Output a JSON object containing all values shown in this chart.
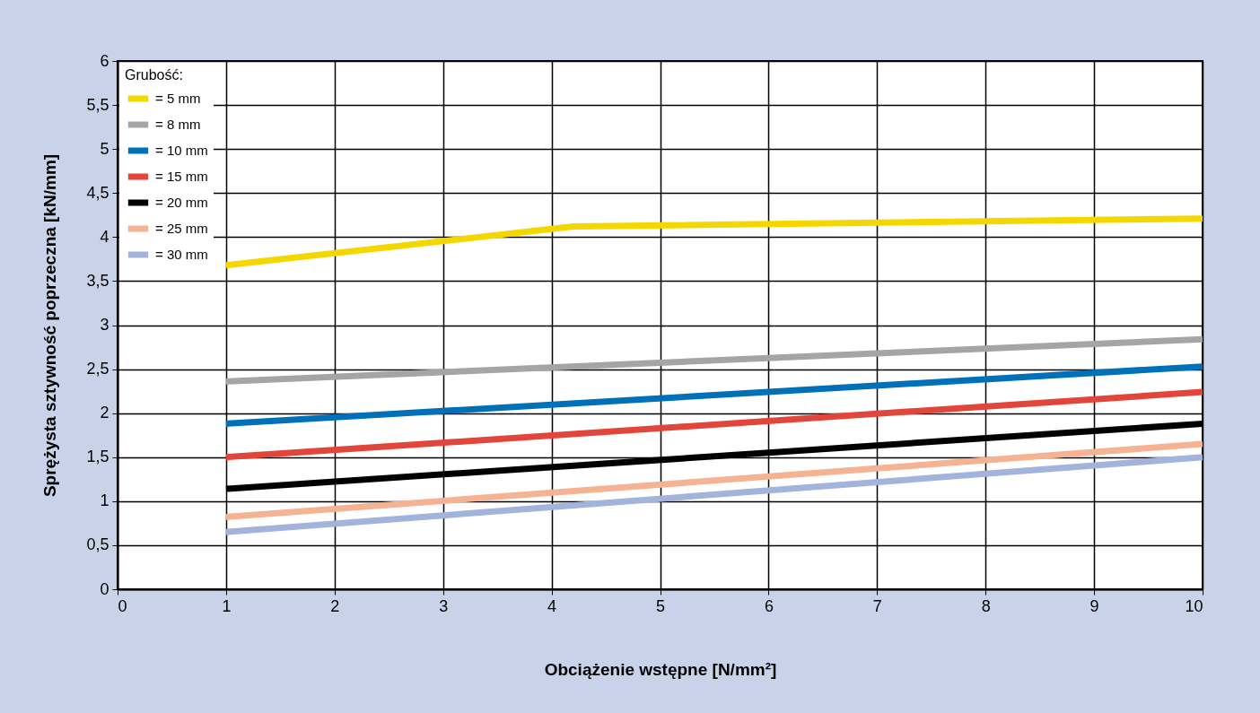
{
  "chart_data": {
    "type": "line",
    "xlabel": "Obciążenie wstępne [N/mm²]",
    "ylabel": "Sprężysta sztywność poprzeczna [kN/mm]",
    "legend_title": "Grubość:",
    "legend": "top left",
    "grid": true,
    "line_style": "solid",
    "xlim": [
      0,
      10
    ],
    "xticks": [
      0,
      1,
      2,
      3,
      4,
      5,
      6,
      7,
      8,
      9,
      10
    ],
    "ylim": [
      0,
      6
    ],
    "yticks": [
      0,
      {
        "value": 0.5,
        "label": "0,5"
      },
      1,
      {
        "value": 1.5,
        "label": "1,5"
      },
      2,
      {
        "value": 2.5,
        "label": "2,5"
      },
      3,
      {
        "value": 3.5,
        "label": "3,5"
      },
      4,
      {
        "value": 4.5,
        "label": "4,5"
      },
      5,
      {
        "value": 5.5,
        "label": "5,5"
      },
      6
    ],
    "series": [
      {
        "name": "= 5 mm",
        "color": "#f5d700",
        "x": [
          1,
          4.2,
          10
        ],
        "values": [
          3.68,
          4.12,
          4.21
        ]
      },
      {
        "name": "= 8 mm",
        "color": "#a5a5a5",
        "x": [
          1,
          10
        ],
        "values": [
          2.36,
          2.84
        ]
      },
      {
        "name": "= 10 mm",
        "color": "#0070b8",
        "x": [
          1,
          10
        ],
        "values": [
          1.88,
          2.53
        ]
      },
      {
        "name": "= 15 mm",
        "color": "#e2463a",
        "x": [
          1,
          10
        ],
        "values": [
          1.5,
          2.24
        ]
      },
      {
        "name": "= 20 mm",
        "color": "#000000",
        "x": [
          1,
          10
        ],
        "values": [
          1.14,
          1.88
        ]
      },
      {
        "name": "= 25 mm",
        "color": "#f5b394",
        "x": [
          1,
          10
        ],
        "values": [
          0.82,
          1.65
        ]
      },
      {
        "name": "= 30 mm",
        "color": "#a2b4dc",
        "x": [
          1,
          10
        ],
        "values": [
          0.65,
          1.5
        ]
      }
    ]
  }
}
